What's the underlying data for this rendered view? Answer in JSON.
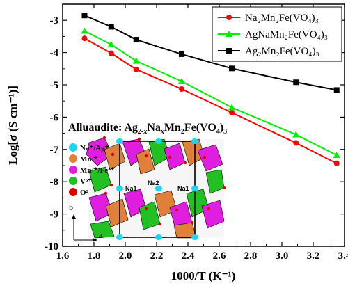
{
  "chart_data": {
    "type": "line",
    "xlabel": "1000/T (K⁻¹)",
    "ylabel": "Log[σ (S cm⁻¹)]",
    "xlim": [
      1.6,
      3.4
    ],
    "ylim": [
      -10,
      -2.5
    ],
    "xticks": [
      "1.6",
      "1.8",
      "2.0",
      "2.2",
      "2.4",
      "2.6",
      "2.8",
      "3.0",
      "3.2",
      "3.4"
    ],
    "yticks": [
      "-3",
      "-4",
      "-5",
      "-6",
      "-7",
      "-8",
      "-9",
      "-10"
    ],
    "xticks_values": [
      1.6,
      1.8,
      2.0,
      2.2,
      2.4,
      2.6,
      2.8,
      3.0,
      3.2,
      3.4
    ],
    "yticks_values": [
      -3,
      -4,
      -5,
      -6,
      -7,
      -8,
      -9,
      -10
    ],
    "legend_position": "top-right",
    "series": [
      {
        "name": "Na₂Mn₂Fe(VO₄)₃",
        "color": "#ff0000",
        "marker": "circle",
        "x": [
          1.74,
          1.91,
          2.07,
          2.36,
          2.68,
          3.09,
          3.35
        ],
        "y": [
          -3.56,
          -4.02,
          -4.52,
          -5.13,
          -5.86,
          -6.8,
          -7.43
        ]
      },
      {
        "name": "AgNaMn₂Fe(VO₄)₃",
        "color": "#00ee00",
        "marker": "triangle",
        "x": [
          1.74,
          1.91,
          2.07,
          2.36,
          2.68,
          3.09,
          3.35
        ],
        "y": [
          -3.33,
          -3.75,
          -4.26,
          -4.89,
          -5.7,
          -6.54,
          -7.18
        ]
      },
      {
        "name": "Ag₂Mn₂Fe(VO₄)₃",
        "color": "#000000",
        "marker": "square",
        "x": [
          1.74,
          1.91,
          2.07,
          2.36,
          2.68,
          3.09,
          3.35
        ],
        "y": [
          -2.85,
          -3.2,
          -3.6,
          -4.05,
          -4.49,
          -4.92,
          -5.16
        ]
      }
    ]
  },
  "inset": {
    "title_prefix": "Alluaudite: Ag",
    "title_sub1": "2-x",
    "title_mid": "Na",
    "title_sub2": "x",
    "title_mid2": "Mn",
    "title_sub3": "2",
    "title_mid3": "Fe(VO",
    "title_sub4": "4",
    "title_end": ")",
    "title_sub5": "3",
    "key": [
      {
        "label": "Na⁺/Ag⁺",
        "color": "#22d3ee"
      },
      {
        "label": "Mn²⁺",
        "color": "#e0813a"
      },
      {
        "label": "Mn²⁺/Fe³⁺",
        "color": "#e01ee0"
      },
      {
        "label": "V⁵⁺",
        "color": "#22c022"
      },
      {
        "label": "O²⁻",
        "color": "#dd0000"
      }
    ],
    "site_labels": [
      "Na1",
      "Na2",
      "Na1"
    ],
    "axis_b": "b",
    "axis_a": "a"
  }
}
